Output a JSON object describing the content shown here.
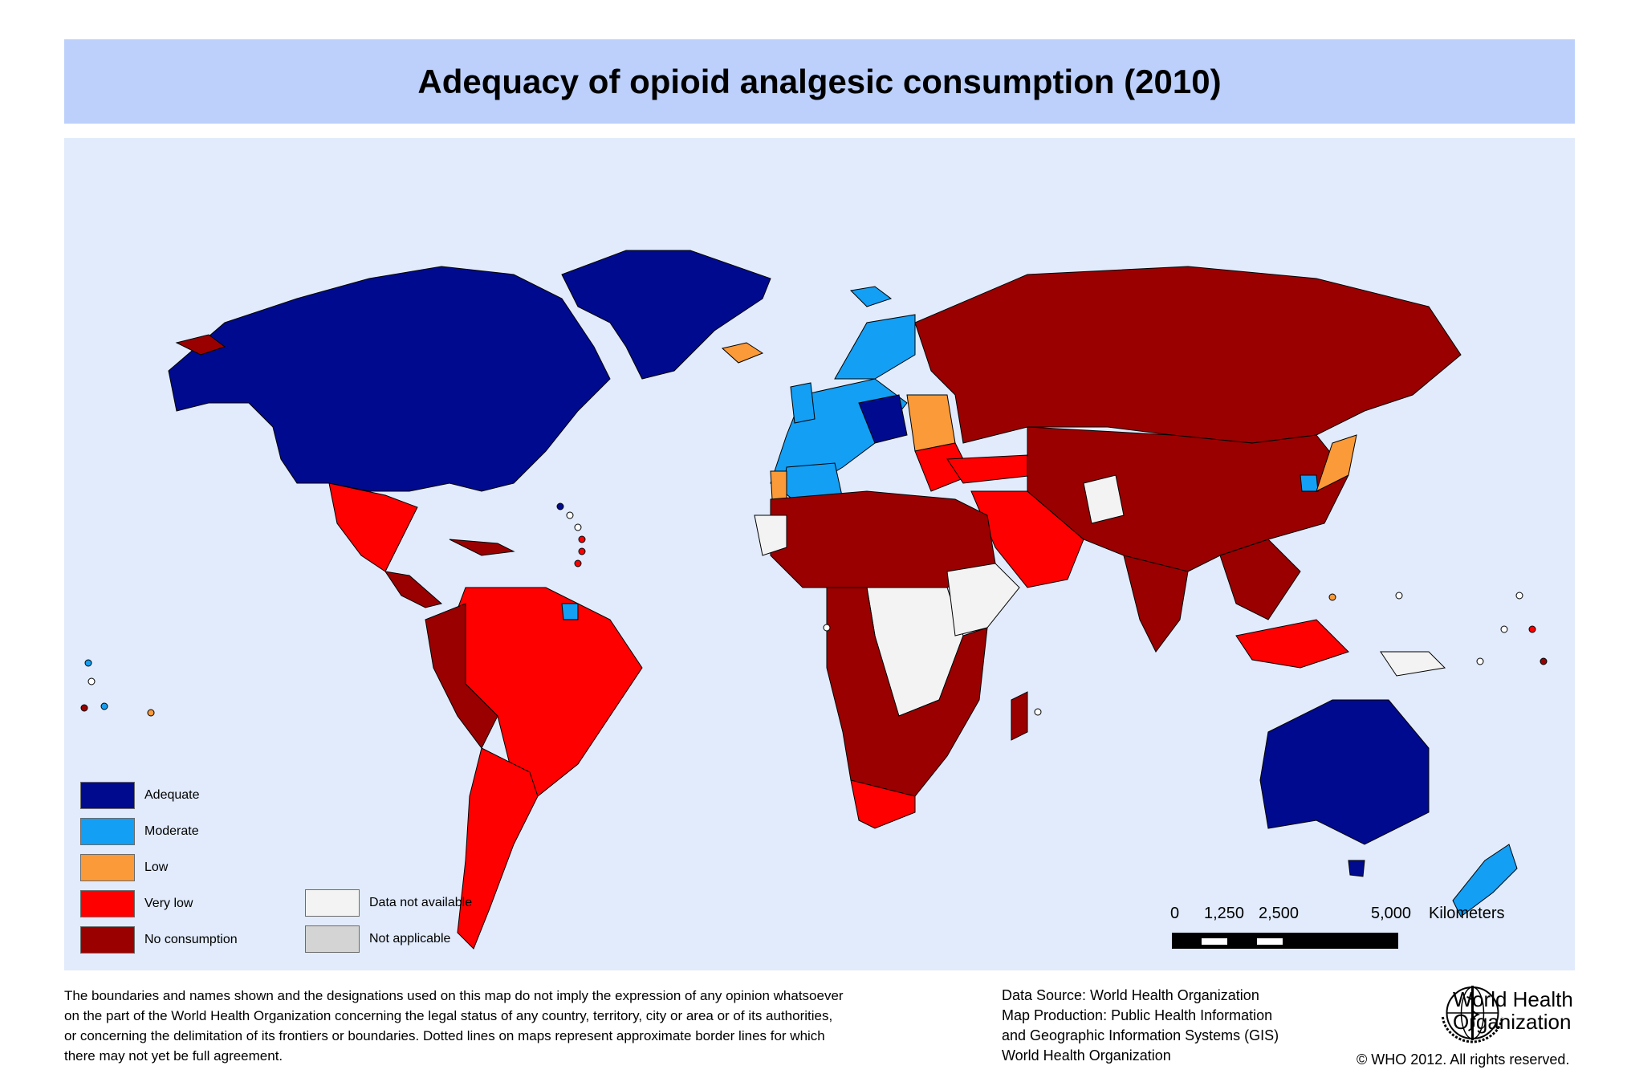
{
  "title": "Adequacy of opioid analgesic consumption (2010)",
  "legend": [
    {
      "label": "Adequate",
      "color": "#000a8f"
    },
    {
      "label": "Moderate",
      "color": "#139ff4"
    },
    {
      "label": "Low",
      "color": "#fb9a38"
    },
    {
      "label": "Very low",
      "color": "#ff0000"
    },
    {
      "label": "No consumption",
      "color": "#9a0000"
    },
    {
      "label": "Data not available",
      "color": "#f3f3f3"
    },
    {
      "label": "Not applicable",
      "color": "#d4d4d4"
    }
  ],
  "scale": {
    "labels": [
      "0",
      "1,250",
      "2,500",
      "5,000"
    ],
    "unit": "Kilometers"
  },
  "disclaimer": [
    "The boundaries and names shown and the designations used on this map do not imply the expression of any opinion whatsoever",
    "on the part of the World Health Organization concerning the legal status of any country, territory, city or area or of its authorities,",
    "or concerning the delimitation of its frontiers or boundaries.  Dotted lines on maps represent approximate border lines for which",
    "there may not yet be full agreement."
  ],
  "source": [
    "Data Source: World Health Organization",
    "Map Production: Public Health Information",
    "and Geographic Information Systems (GIS)",
    "World Health Organization"
  ],
  "organization": [
    "World Health",
    "Organization"
  ],
  "copyright": "© WHO 2012. All rights reserved."
}
